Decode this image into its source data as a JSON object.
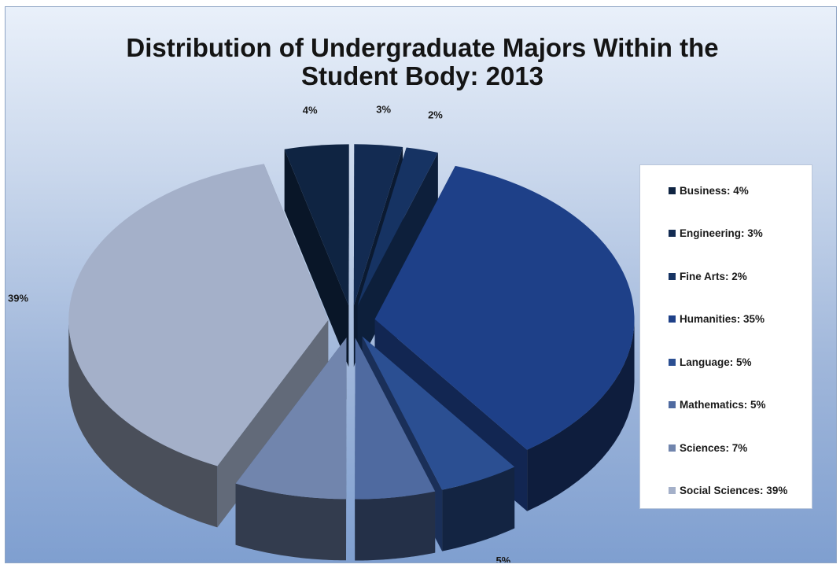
{
  "chart_data": {
    "type": "pie",
    "title": "Distribution of Undergraduate Majors Within the Student Body: 2013",
    "title_lines": [
      "Distribution of Undergraduate Majors Within the",
      "Student Body: 2013"
    ],
    "style": "3d-exploded",
    "legend_position": "right",
    "slices": [
      {
        "name": "Business",
        "value": 4,
        "label": "4%",
        "legend": "Business: 4%",
        "color": "#0f2442"
      },
      {
        "name": "Engineering",
        "value": 3,
        "label": "3%",
        "legend": "Engineering: 3%",
        "color": "#132b52"
      },
      {
        "name": "Fine Arts",
        "value": 2,
        "label": "2%",
        "legend": "Fine Arts: 2%",
        "color": "#163363"
      },
      {
        "name": "Humanities",
        "value": 35,
        "label": "35%",
        "legend": "Humanities: 35%",
        "color": "#1e4088"
      },
      {
        "name": "Language",
        "value": 5,
        "label": "5%",
        "legend": "Language: 5%",
        "color": "#2b4f92"
      },
      {
        "name": "Mathematics",
        "value": 5,
        "label": "5%",
        "legend": "Mathematics: 5%",
        "color": "#4f6aa0"
      },
      {
        "name": "Sciences",
        "value": 7,
        "label": "7%",
        "legend": "Sciences: 7%",
        "color": "#7185ad"
      },
      {
        "name": "Social Sciences",
        "value": 39,
        "label": "39%",
        "legend": "Social Sciences: 39%",
        "color": "#a4b0c9"
      }
    ]
  }
}
